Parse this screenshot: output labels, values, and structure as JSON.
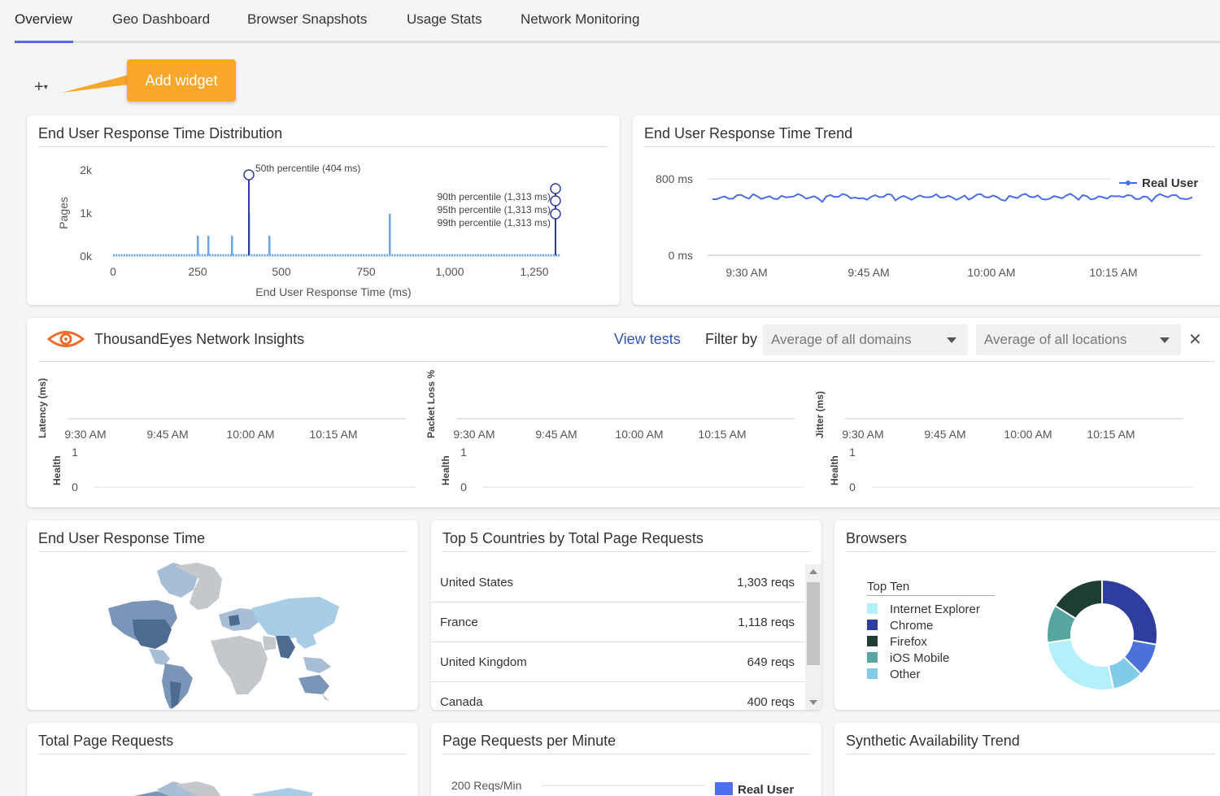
{
  "tabs": [
    {
      "label": "Overview",
      "active": true
    },
    {
      "label": "Geo Dashboard"
    },
    {
      "label": "Browser Snapshots"
    },
    {
      "label": "Usage Stats"
    },
    {
      "label": "Network Monitoring"
    }
  ],
  "toolbar": {
    "add_symbol": "+",
    "add_tooltip": "Add widget"
  },
  "distribution": {
    "title": "End User Response Time Distribution",
    "ylabel": "Pages",
    "xlabel": "End User Response Time (ms)",
    "y_ticks": [
      "2k",
      "1k",
      "0k"
    ],
    "x_ticks": [
      "0",
      "250",
      "500",
      "750",
      "1,000",
      "1,250"
    ],
    "annotations": [
      "50th percentile (404 ms)",
      "90th percentile (1,313 ms)",
      "95th percentile (1,313 ms)",
      "99th percentile (1,313 ms)"
    ],
    "color": "#6ea5e6"
  },
  "trend": {
    "title": "End User Response Time Trend",
    "y_ticks": [
      "800 ms",
      "0 ms"
    ],
    "x_ticks": [
      "9:30 AM",
      "9:45 AM",
      "10:00 AM",
      "10:15 AM"
    ],
    "legend": "Real User",
    "color": "#4a6fe8"
  },
  "network": {
    "title": "ThousandEyes Network Insights",
    "view_tests": "View tests",
    "filter_by": "Filter by",
    "domain_select": "Average of all domains",
    "location_select": "Average of all locations",
    "close": "✕",
    "charts": [
      {
        "ylabel": "Latency (ms)",
        "health": "Health"
      },
      {
        "ylabel": "Packet Loss %",
        "health": "Health"
      },
      {
        "ylabel": "Jitter (ms)",
        "health": "Health"
      }
    ],
    "x_ticks": [
      "9:30 AM",
      "9:45 AM",
      "10:00 AM",
      "10:15 AM"
    ],
    "health_ticks": [
      "1",
      "0"
    ],
    "brand_color": "#ef6c2f"
  },
  "response_time_map": {
    "title": "End User Response Time"
  },
  "countries": {
    "title": "Top 5 Countries by Total Page Requests",
    "rows": [
      {
        "name": "United States",
        "value": "1,303 reqs"
      },
      {
        "name": "France",
        "value": "1,118 reqs"
      },
      {
        "name": "United Kingdom",
        "value": "649 reqs"
      },
      {
        "name": "Canada",
        "value": "400 reqs"
      }
    ]
  },
  "browsers": {
    "title": "Browsers",
    "legend_title": "Top Ten",
    "items": [
      {
        "name": "Internet Explorer",
        "color": "#b3f0fa"
      },
      {
        "name": "Chrome",
        "color": "#2f3d9e"
      },
      {
        "name": "Firefox",
        "color": "#1e3d34"
      },
      {
        "name": "iOS Mobile",
        "color": "#56a5a0"
      },
      {
        "name": "Other",
        "color": "#80cbe6"
      }
    ]
  },
  "total_requests": {
    "title": "Total Page Requests"
  },
  "requests_per_minute": {
    "title": "Page Requests per Minute",
    "y_tick": "200 Reqs/Min",
    "legend": "Real User",
    "color": "#4f6ff0"
  },
  "synthetic": {
    "title": "Synthetic Availability Trend"
  }
}
